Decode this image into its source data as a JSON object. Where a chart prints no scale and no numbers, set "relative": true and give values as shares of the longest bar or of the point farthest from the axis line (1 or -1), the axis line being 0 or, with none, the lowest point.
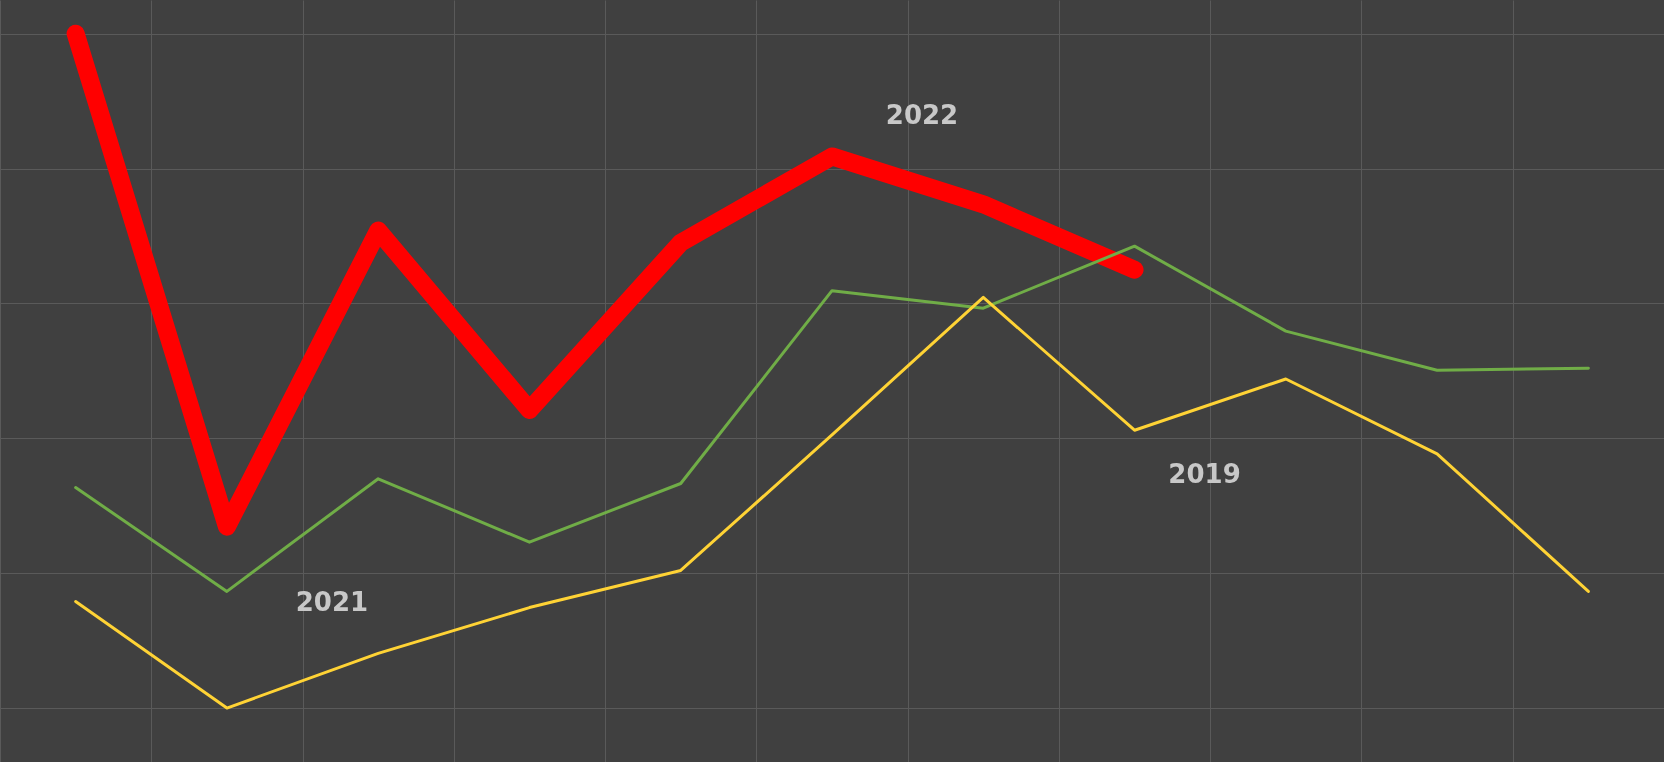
{
  "chart_data": {
    "type": "line",
    "relative": true,
    "grid": true,
    "categories": [
      null,
      null,
      null,
      null,
      null,
      null,
      null,
      null,
      null,
      null,
      null
    ],
    "series": [
      {
        "name": "2022",
        "color": "#ff0000",
        "values": [
          1,
          0.269,
          0.708,
          0.442,
          0.69,
          0.818,
          0.747,
          0.65,
          null,
          null,
          null
        ]
      },
      {
        "name": "2021",
        "color": "#70ad47",
        "values": [
          0.327,
          0.173,
          0.34,
          0.246,
          0.333,
          0.619,
          0.593,
          0.685,
          0.559,
          0.501,
          0.504
        ]
      },
      {
        "name": "2019",
        "color": "#ffd335",
        "values": [
          0.158,
          0,
          0.081,
          0.149,
          0.204,
          0.405,
          0.609,
          0.412,
          0.488,
          0.377,
          0.173
        ]
      }
    ]
  }
}
